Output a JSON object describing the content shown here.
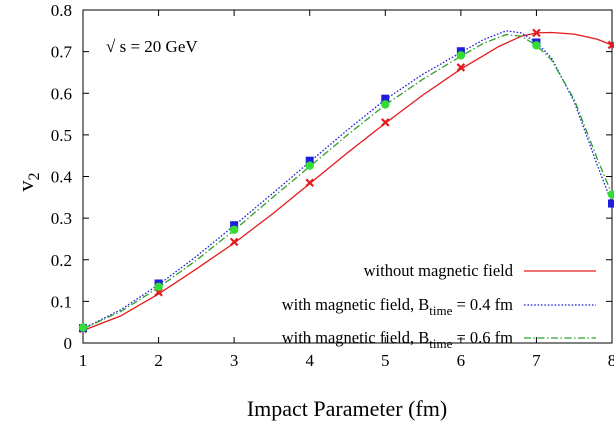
{
  "chart_data": {
    "type": "line",
    "xlabel": "Impact Parameter (fm)",
    "ylabel": "v",
    "ylabel_sub": "2",
    "xlim": [
      1,
      8
    ],
    "ylim": [
      0,
      0.8
    ],
    "xticks": [
      1,
      2,
      3,
      4,
      5,
      6,
      7,
      8
    ],
    "yticks": [
      0,
      0.1,
      0.2,
      0.3,
      0.4,
      0.5,
      0.6,
      0.7,
      0.8
    ],
    "grid": false,
    "legend_position": "bottom-right",
    "annotation": {
      "radical": "√",
      "text": " s = 20 GeV"
    },
    "series": [
      {
        "name": "without magnetic field",
        "legend_sub": "",
        "legend_tail": "",
        "color": "#e41a1c",
        "dash": "solid",
        "marker": "x-cross",
        "x": [
          1,
          2,
          3,
          4,
          5,
          6,
          7,
          8
        ],
        "y": [
          0.034,
          0.122,
          0.243,
          0.385,
          0.53,
          0.662,
          0.745,
          0.716
        ],
        "curve": [
          [
            1,
            0.03
          ],
          [
            1.5,
            0.065
          ],
          [
            2,
            0.118
          ],
          [
            2.5,
            0.178
          ],
          [
            3,
            0.24
          ],
          [
            3.5,
            0.309
          ],
          [
            4,
            0.383
          ],
          [
            4.5,
            0.457
          ],
          [
            5,
            0.528
          ],
          [
            5.5,
            0.596
          ],
          [
            6,
            0.658
          ],
          [
            6.5,
            0.712
          ],
          [
            6.8,
            0.737
          ],
          [
            7,
            0.745
          ],
          [
            7.2,
            0.746
          ],
          [
            7.5,
            0.742
          ],
          [
            7.8,
            0.73
          ],
          [
            8,
            0.716
          ]
        ]
      },
      {
        "name": "with magnetic field, B",
        "legend_sub": "time",
        "legend_tail": " = 0.4 fm",
        "color": "#1f1fdb",
        "dash": "dotted",
        "marker": "square",
        "x": [
          1,
          2,
          3,
          4,
          5,
          6,
          7,
          8
        ],
        "y": [
          0.036,
          0.143,
          0.283,
          0.438,
          0.587,
          0.701,
          0.722,
          0.335
        ],
        "curve": [
          [
            1,
            0.034
          ],
          [
            1.5,
            0.08
          ],
          [
            2,
            0.14
          ],
          [
            2.5,
            0.208
          ],
          [
            3,
            0.282
          ],
          [
            3.5,
            0.358
          ],
          [
            4,
            0.435
          ],
          [
            4.5,
            0.512
          ],
          [
            5,
            0.585
          ],
          [
            5.5,
            0.646
          ],
          [
            6,
            0.698
          ],
          [
            6.3,
            0.729
          ],
          [
            6.6,
            0.75
          ],
          [
            6.8,
            0.745
          ],
          [
            7,
            0.722
          ],
          [
            7.2,
            0.685
          ],
          [
            7.5,
            0.58
          ],
          [
            7.8,
            0.43
          ],
          [
            8,
            0.335
          ]
        ]
      },
      {
        "name": "with magnetic field, B",
        "legend_sub": "time",
        "legend_tail": " = 0.6 fm",
        "color": "#2ca02c",
        "marker_color": "#33dd33",
        "dash": "dashdot",
        "marker": "circle",
        "x": [
          1,
          2,
          3,
          4,
          5,
          6,
          7,
          8
        ],
        "y": [
          0.037,
          0.135,
          0.272,
          0.426,
          0.573,
          0.691,
          0.715,
          0.357
        ],
        "curve": [
          [
            1,
            0.034
          ],
          [
            1.5,
            0.076
          ],
          [
            2,
            0.133
          ],
          [
            2.5,
            0.199
          ],
          [
            3,
            0.271
          ],
          [
            3.5,
            0.348
          ],
          [
            4,
            0.424
          ],
          [
            4.5,
            0.5
          ],
          [
            5,
            0.572
          ],
          [
            5.5,
            0.634
          ],
          [
            6,
            0.689
          ],
          [
            6.3,
            0.72
          ],
          [
            6.6,
            0.741
          ],
          [
            6.8,
            0.737
          ],
          [
            7,
            0.715
          ],
          [
            7.2,
            0.68
          ],
          [
            7.5,
            0.585
          ],
          [
            7.8,
            0.445
          ],
          [
            8,
            0.357
          ]
        ]
      }
    ]
  }
}
